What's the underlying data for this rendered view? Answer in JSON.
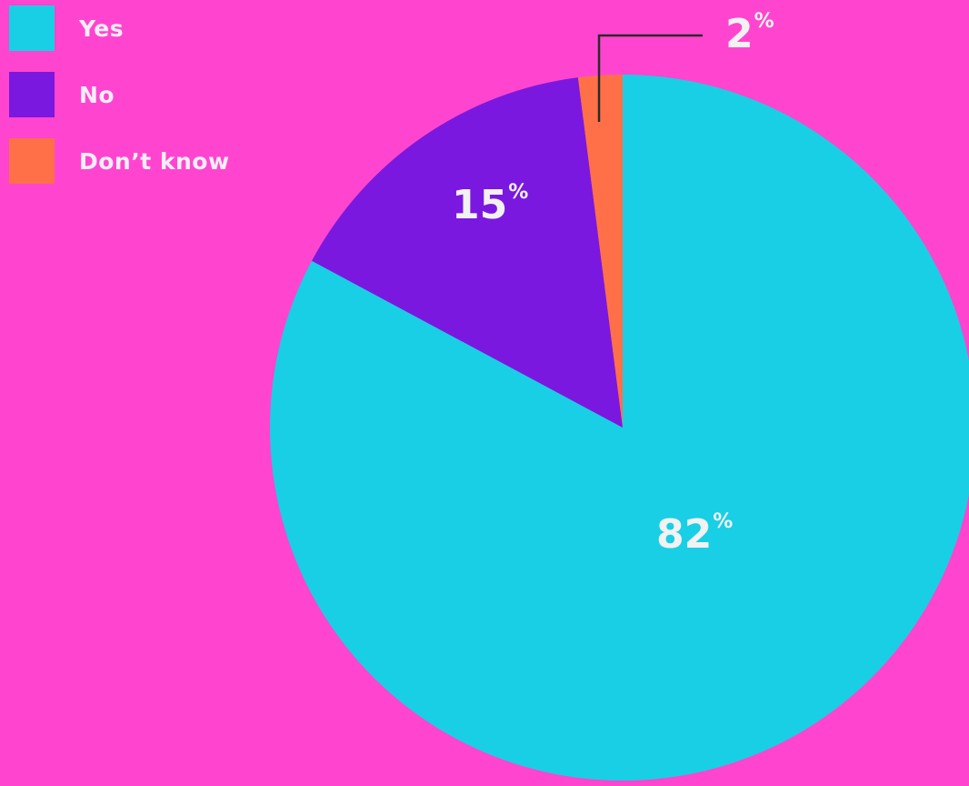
{
  "chart_data": {
    "type": "pie",
    "categories": [
      "Yes",
      "No",
      "Don’t know"
    ],
    "values": [
      82,
      15,
      2
    ],
    "value_labels": [
      "82",
      "15",
      "2"
    ],
    "unit": "%",
    "colors": [
      "#18cfe6",
      "#7a18df",
      "#ff7049"
    ],
    "legend_placement": "top-left"
  }
}
